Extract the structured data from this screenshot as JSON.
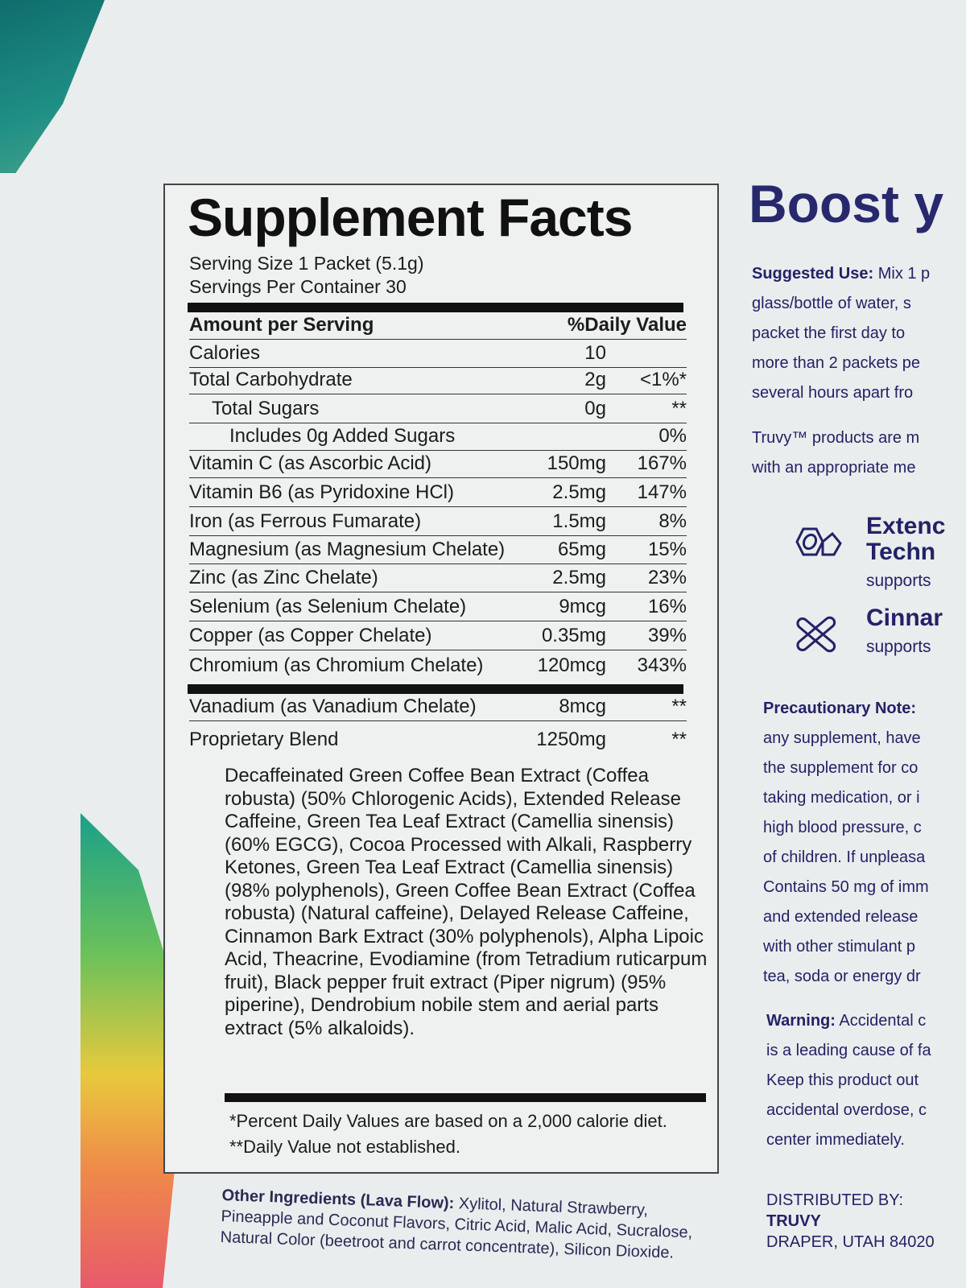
{
  "label": {
    "title": "Supplement Facts",
    "serving_size": "Serving Size 1 Packet (5.1g)",
    "servings_per_container": "Servings Per Container 30",
    "header": {
      "amount": "Amount per Serving",
      "dv": "%Daily Value"
    },
    "rows": [
      {
        "name": "Calories",
        "amount": "10",
        "dv": ""
      },
      {
        "name": "Total Carbohydrate",
        "amount": "2g",
        "dv": "<1%*"
      },
      {
        "name": "Total Sugars",
        "amount": "0g",
        "dv": "**"
      },
      {
        "name": "Includes 0g Added Sugars",
        "amount": "",
        "dv": "0%"
      },
      {
        "name": "Vitamin C (as Ascorbic Acid)",
        "amount": "150mg",
        "dv": "167%"
      },
      {
        "name": "Vitamin B6 (as Pyridoxine HCl)",
        "amount": "2.5mg",
        "dv": "147%"
      },
      {
        "name": "Iron (as Ferrous Fumarate)",
        "amount": "1.5mg",
        "dv": "8%"
      },
      {
        "name": "Magnesium (as Magnesium Chelate)",
        "amount": "65mg",
        "dv": "15%"
      },
      {
        "name": "Zinc (as Zinc Chelate)",
        "amount": "2.5mg",
        "dv": "23%"
      },
      {
        "name": "Selenium (as Selenium Chelate)",
        "amount": "9mcg",
        "dv": "16%"
      },
      {
        "name": "Copper (as Copper Chelate)",
        "amount": "0.35mg",
        "dv": "39%"
      },
      {
        "name": "Chromium (as Chromium Chelate)",
        "amount": "120mcg",
        "dv": "343%"
      },
      {
        "name": "Vanadium (as Vanadium Chelate)",
        "amount": "8mcg",
        "dv": "**"
      },
      {
        "name": "Proprietary Blend",
        "amount": "1250mg",
        "dv": "**"
      }
    ],
    "blend_text": "Decaffeinated Green Coffee Bean Extract (Coffea robusta) (50% Chlorogenic Acids), Extended Release Caffeine, Green Tea Leaf Extract (Camellia sinensis) (60% EGCG), Cocoa Processed with Alkali, Raspberry Ketones, Green Tea Leaf Extract (Camellia sinensis) (98% polyphenols), Green Coffee Bean Extract (Coffea robusta) (Natural caffeine), Delayed Release Caffeine, Cinnamon Bark Extract (30% polyphenols), Alpha Lipoic Acid, Theacrine, Evodiamine (from Tetradium ruticarpum fruit), Black pepper fruit extract (Piper nigrum) (95% piperine), Dendrobium nobile stem and aerial parts extract (5% alkaloids).",
    "footnote1": "*Percent Daily Values are based on a 2,000 calorie diet.",
    "footnote2": "**Daily Value not established."
  },
  "other_ingredients": {
    "heading": "Other Ingredients (Lava Flow):",
    "text": "Xylitol, Natural Strawberry, Pineapple and Coconut Flavors, Citric Acid, Malic Acid, Sucralose, Natural Color (beetroot and carrot concentrate), Silicon Dioxide."
  },
  "right": {
    "heading": "Boost y",
    "suggested_label": "Suggested Use:",
    "suggested_lines": [
      "Mix 1 p",
      "glass/bottle of water, s",
      "packet the first day to",
      "more than 2 packets pe",
      "several hours apart fro"
    ],
    "truvy_lines": [
      "Truvy™ products are m",
      "with an appropriate me"
    ],
    "feature1": {
      "title1": "Extenc",
      "title2": "Techn",
      "sub": "supports"
    },
    "feature2": {
      "title": "Cinnar",
      "sub": "supports"
    },
    "precaution_label": "Precautionary Note:",
    "precaution_lines": [
      "any supplement, have",
      "the supplement for co",
      "taking medication, or i",
      "high blood pressure, c",
      "of children. If unpleasa",
      "Contains 50 mg of imm",
      "and extended release",
      "with other stimulant p",
      "tea, soda or energy dr"
    ],
    "warning_label": "Warning:",
    "warning_lines": [
      "Accidental c",
      "is a leading cause of fa",
      "Keep this product out",
      "accidental overdose, c",
      "center immediately."
    ],
    "distributed": "DISTRIBUTED BY:",
    "brand": "TRUVY",
    "address": "DRAPER, UTAH 84020"
  },
  "colors": {
    "label_text": "#1c1c1c",
    "brand_navy": "#28286e"
  }
}
